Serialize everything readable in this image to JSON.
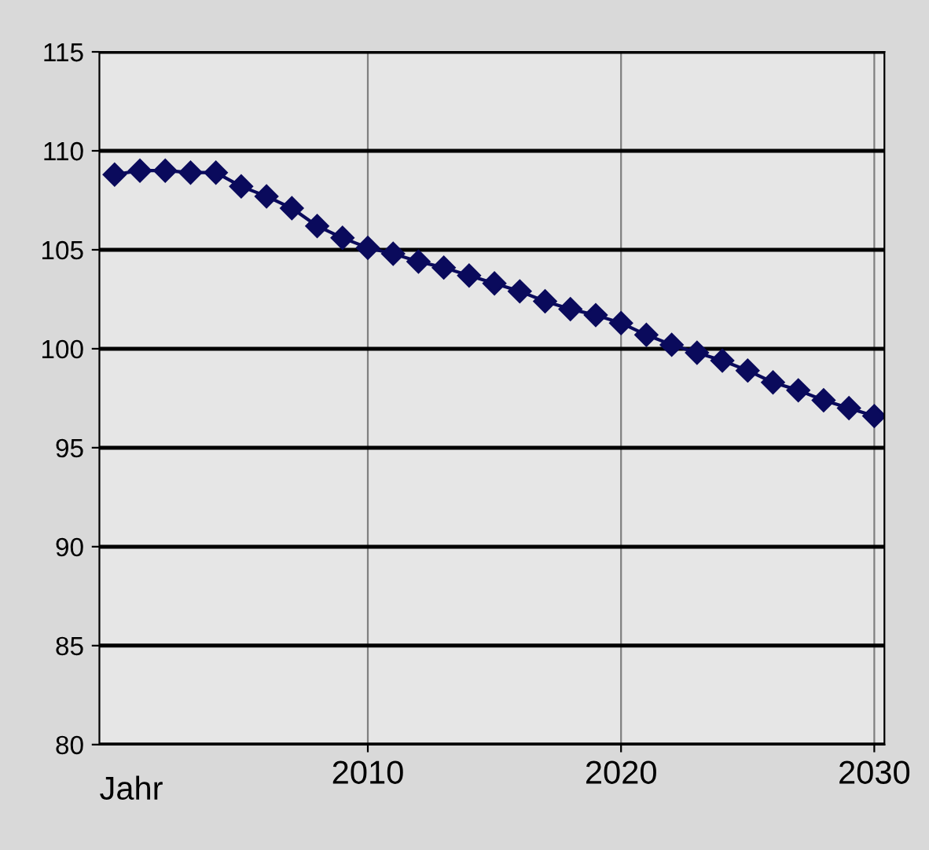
{
  "chart_data": {
    "type": "line",
    "xlabel": "Jahr",
    "x": [
      2000,
      2001,
      2002,
      2003,
      2004,
      2005,
      2006,
      2007,
      2008,
      2009,
      2010,
      2011,
      2012,
      2013,
      2014,
      2015,
      2016,
      2017,
      2018,
      2019,
      2020,
      2021,
      2022,
      2023,
      2024,
      2025,
      2026,
      2027,
      2028,
      2029,
      2030
    ],
    "series": [
      {
        "color": "#0a0a5c",
        "values": [
          108.8,
          109.0,
          109.0,
          108.9,
          108.9,
          108.2,
          107.7,
          107.1,
          106.2,
          105.6,
          105.1,
          104.8,
          104.4,
          104.1,
          103.7,
          103.3,
          102.9,
          102.4,
          102.0,
          101.7,
          101.3,
          100.7,
          100.2,
          99.8,
          99.4,
          98.9,
          98.3,
          97.9,
          97.4,
          97.0,
          96.6
        ]
      }
    ],
    "xlim": [
      1999.4,
      2030.4
    ],
    "xticks": [
      2010,
      2020,
      2030
    ],
    "ylim": [
      80,
      115
    ],
    "yticks": [
      80,
      85,
      90,
      95,
      100,
      105,
      110,
      115
    ],
    "grid": true,
    "marker": "diamond",
    "line_style": "solid"
  }
}
